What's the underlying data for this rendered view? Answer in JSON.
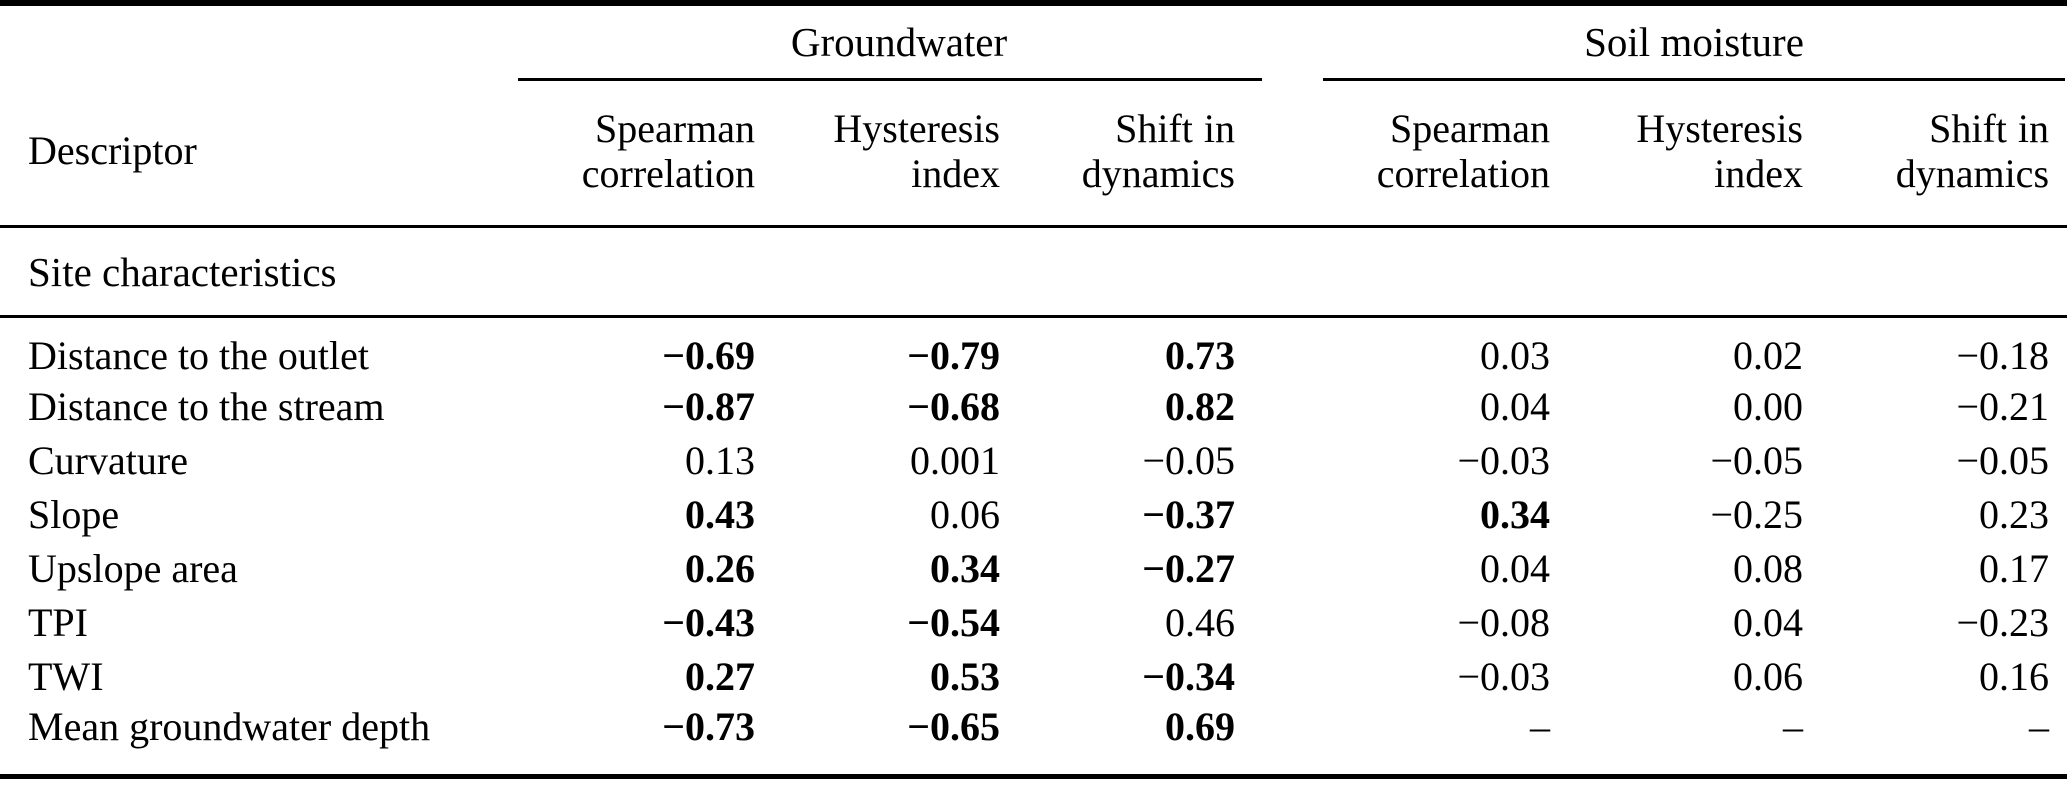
{
  "table": {
    "descriptor_header": "Descriptor",
    "groups": [
      {
        "label": "Groundwater",
        "columns": [
          "Spearman correlation",
          "Hysteresis index",
          "Shift in dynamics"
        ]
      },
      {
        "label": "Soil moisture",
        "columns": [
          "Spearman correlation",
          "Hysteresis index",
          "Shift in dynamics"
        ]
      }
    ],
    "section": "Site characteristics",
    "rows": [
      {
        "label": "Distance to the outlet",
        "values": [
          "−0.69",
          "−0.79",
          "0.73",
          "0.03",
          "0.02",
          "−0.18"
        ],
        "bold": [
          true,
          true,
          true,
          false,
          false,
          false
        ]
      },
      {
        "label": "Distance to the stream",
        "values": [
          "−0.87",
          "−0.68",
          "0.82",
          "0.04",
          "0.00",
          "−0.21"
        ],
        "bold": [
          true,
          true,
          true,
          false,
          false,
          false
        ]
      },
      {
        "label": "Curvature",
        "values": [
          "0.13",
          "0.001",
          "−0.05",
          "−0.03",
          "−0.05",
          "−0.05"
        ],
        "bold": [
          false,
          false,
          false,
          false,
          false,
          false
        ]
      },
      {
        "label": "Slope",
        "values": [
          "0.43",
          "0.06",
          "−0.37",
          "0.34",
          "−0.25",
          "0.23"
        ],
        "bold": [
          true,
          false,
          true,
          true,
          false,
          false
        ]
      },
      {
        "label": "Upslope area",
        "values": [
          "0.26",
          "0.34",
          "−0.27",
          "0.04",
          "0.08",
          "0.17"
        ],
        "bold": [
          true,
          true,
          true,
          false,
          false,
          false
        ]
      },
      {
        "label": "TPI",
        "values": [
          "−0.43",
          "−0.54",
          "0.46",
          "−0.08",
          "0.04",
          "−0.23"
        ],
        "bold": [
          true,
          true,
          false,
          false,
          false,
          false
        ]
      },
      {
        "label": "TWI",
        "values": [
          "0.27",
          "0.53",
          "−0.34",
          "−0.03",
          "0.06",
          "0.16"
        ],
        "bold": [
          true,
          true,
          true,
          false,
          false,
          false
        ]
      },
      {
        "label": "Mean groundwater depth",
        "values": [
          "−0.73",
          "−0.65",
          "0.69",
          "–",
          "–",
          "–"
        ],
        "bold": [
          true,
          true,
          true,
          false,
          false,
          false
        ]
      }
    ]
  }
}
